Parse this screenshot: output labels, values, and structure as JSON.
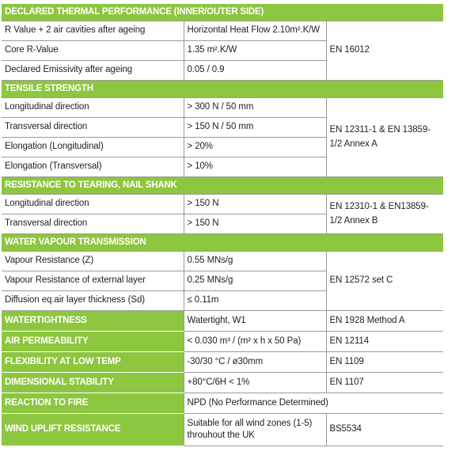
{
  "sections": [
    {
      "title": "DECLARED THERMAL PERFORMANCE (INNER/OUTER SIDE)",
      "standard": "EN 16012",
      "rows": [
        {
          "property": "R Value + 2 air cavities after ageing",
          "value": "Horizontal Heat Flow 2.10m².K/W"
        },
        {
          "property": "Core R-Value",
          "value": "1.35 m².K/W"
        },
        {
          "property": "Declared Emissivity after ageing",
          "value": "0.05 / 0.9"
        }
      ]
    },
    {
      "title": "TENSILE STRENGTH",
      "standard": "EN 12311-1 & EN 13859-1/2 Annex A",
      "rows": [
        {
          "property": "Longitudinal direction",
          "value": "> 300 N / 50 mm"
        },
        {
          "property": "Transversal direction",
          "value": "> 150 N / 50 mm"
        },
        {
          "property": "Elongation (Longitudinal)",
          "value": "> 20%"
        },
        {
          "property": "Elongation (Transversal)",
          "value": "> 10%"
        }
      ]
    },
    {
      "title": "RESISTANCE TO TEARING, NAIL SHANK",
      "standard": "EN 12310-1 & EN13859-1/2 Annex B",
      "rows": [
        {
          "property": "Longitudinal direction",
          "value": "> 150 N"
        },
        {
          "property": "Transversal direction",
          "value": "> 150 N"
        }
      ]
    },
    {
      "title": "WATER VAPOUR TRANSMISSION",
      "standard": "EN 12572 set C",
      "rows": [
        {
          "property": "Vapour Resistance (Z)",
          "value": "0.55 MNs/g"
        },
        {
          "property": "Vapour Resistance of external layer",
          "value": "0.25 MNs/g"
        },
        {
          "property": "Diffusion eq.air layer thickness (Sd)",
          "value": "≤ 0.11m"
        }
      ]
    }
  ],
  "single_rows": [
    {
      "label": "WATERTIGHTNESS",
      "value": "Watertight, W1",
      "standard": "EN 1928 Method A"
    },
    {
      "label": "AIR PERMEABILITY",
      "value": "< 0.030 m³ / (m² x h x 50 Pa)",
      "standard": "EN 12114"
    },
    {
      "label": "FLEXIBILITY AT LOW TEMP",
      "value": "-30/30 °C / ø30mm",
      "standard": "EN 1109"
    },
    {
      "label": "DIMENSIONAL STABILITY",
      "value": "+80°C/6H < 1%",
      "standard": "EN 1107"
    },
    {
      "label": "REACTION TO FIRE",
      "value": "NPD (No Performance Determined)",
      "standard": ""
    },
    {
      "label": "WIND UPLIFT RESISTANCE",
      "value": "Suitable for all wind zones (1-5) throuhout the UK",
      "standard": "BS5534"
    }
  ],
  "colors": {
    "header_green": "#8dc63f",
    "grid_line": "#9a9a9a",
    "text": "#222222"
  }
}
